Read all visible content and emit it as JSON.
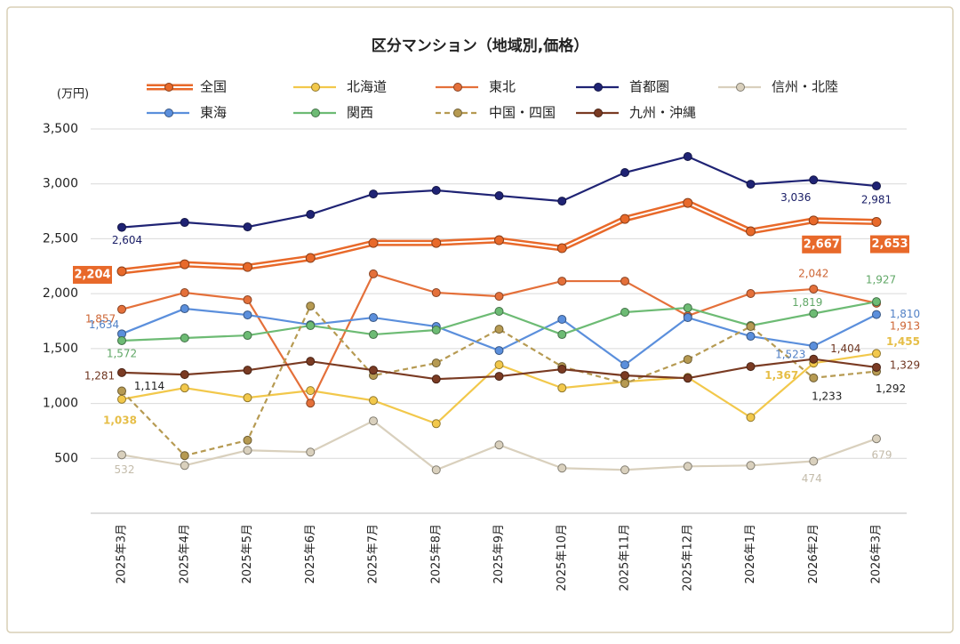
{
  "chart_data": {
    "type": "line",
    "title": "区分マンション（地域別,価格）",
    "y_axis_label": "(万円)",
    "categories": [
      "2025年3月",
      "2025年4月",
      "2025年5月",
      "2025年6月",
      "2025年7月",
      "2025年8月",
      "2025年9月",
      "2025年10月",
      "2025年11月",
      "2025年12月",
      "2026年1月",
      "2026年2月",
      "2026年3月"
    ],
    "ylim": [
      0,
      3500
    ],
    "yticks": [
      {
        "value": 500,
        "label": "500"
      },
      {
        "value": 1000,
        "label": "1,000"
      },
      {
        "value": 1500,
        "label": "1,500"
      },
      {
        "value": 2000,
        "label": "2,000"
      },
      {
        "value": 2500,
        "label": "2,500"
      },
      {
        "value": 3000,
        "label": "3,000"
      },
      {
        "value": 3500,
        "label": "3,500"
      }
    ],
    "grid": true,
    "legend": "top",
    "series": [
      {
        "name": "全国",
        "color": "#e8692a",
        "style": "double",
        "values": [
          2204,
          2268,
          2243,
          2325,
          2462,
          2462,
          2487,
          2414,
          2681,
          2827,
          2568,
          2667,
          2653
        ],
        "value_labels": [
          "2,204",
          null,
          null,
          null,
          null,
          null,
          null,
          null,
          null,
          null,
          null,
          "2,667",
          "2,653"
        ]
      },
      {
        "name": "北海道",
        "color": "#f2c84b",
        "values": [
          1038,
          1141,
          1052,
          1117,
          1027,
          816,
          1352,
          1141,
          1198,
          1238,
          873,
          1367,
          1455
        ],
        "value_labels": [
          "1,038",
          null,
          null,
          null,
          null,
          null,
          null,
          null,
          null,
          null,
          null,
          "1,367",
          "1,455"
        ]
      },
      {
        "name": "東北",
        "color": "#e4703a",
        "values": [
          1857,
          2009,
          1944,
          1003,
          2180,
          2009,
          1976,
          2114,
          2114,
          1798,
          2001,
          2042,
          1913
        ],
        "value_labels": [
          "1,857",
          null,
          null,
          null,
          null,
          null,
          null,
          null,
          null,
          null,
          null,
          "2,042",
          "1,913"
        ]
      },
      {
        "name": "首都圏",
        "color": "#1f2374",
        "values": [
          2604,
          2649,
          2608,
          2722,
          2908,
          2941,
          2892,
          2843,
          3103,
          3249,
          2997,
          3036,
          2981
        ],
        "value_labels": [
          "2,604",
          null,
          null,
          null,
          null,
          null,
          null,
          null,
          null,
          null,
          null,
          "3,036",
          "2,981"
        ]
      },
      {
        "name": "信州・北陸",
        "color": "#d9d0bd",
        "values": [
          532,
          435,
          573,
          557,
          841,
          395,
          622,
          411,
          395,
          427,
          435,
          474,
          679
        ]
      },
      {
        "name": "東海",
        "color": "#5b8fdc",
        "values": [
          1634,
          1863,
          1806,
          1717,
          1782,
          1701,
          1482,
          1766,
          1352,
          1782,
          1612,
          1523,
          1810
        ],
        "value_labels": [
          "1,634",
          null,
          null,
          null,
          null,
          null,
          null,
          null,
          null,
          null,
          null,
          "1,523",
          "1,810"
        ]
      },
      {
        "name": "関西",
        "color": "#6dbb74",
        "values": [
          1572,
          1596,
          1620,
          1709,
          1628,
          1669,
          1839,
          1628,
          1831,
          1871,
          1709,
          1819,
          1927
        ],
        "value_labels": [
          "1,572",
          null,
          null,
          null,
          null,
          null,
          null,
          null,
          null,
          null,
          null,
          "1,819",
          "1,927"
        ]
      },
      {
        "name": "中国・四国",
        "color": "#b69a52",
        "style": "dashed",
        "values": [
          1114,
          525,
          665,
          1887,
          1255,
          1368,
          1676,
          1336,
          1182,
          1401,
          1701,
          1233,
          1292
        ],
        "value_labels": [
          "1,114",
          null,
          null,
          null,
          null,
          null,
          null,
          null,
          null,
          null,
          null,
          "1,233",
          "1,292"
        ]
      },
      {
        "name": "九州・沖縄",
        "color": "#7a3b23",
        "values": [
          1281,
          1263,
          1303,
          1384,
          1303,
          1222,
          1247,
          1312,
          1255,
          1230,
          1336,
          1404,
          1329
        ],
        "value_labels": [
          "1,281",
          null,
          null,
          null,
          null,
          null,
          null,
          null,
          null,
          null,
          null,
          "1,404",
          "1,329"
        ]
      }
    ]
  }
}
